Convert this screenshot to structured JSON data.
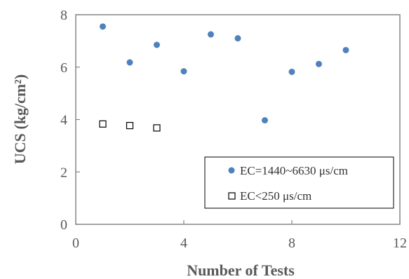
{
  "chart_data": {
    "type": "scatter",
    "xlabel": "Number of Tests",
    "ylabel": "UCS (kg/cm²)",
    "xlim": [
      0,
      12
    ],
    "ylim": [
      0,
      8
    ],
    "xticks": [
      0,
      4,
      8,
      12
    ],
    "yticks": [
      0,
      2,
      4,
      6,
      8
    ],
    "grid": false,
    "legend_position": "bottom-right",
    "series": [
      {
        "name": "EC=1440~6630 μs/cm",
        "marker": "filled-circle",
        "color": "#4f81bd",
        "points": [
          {
            "x": 1,
            "y": 7.55
          },
          {
            "x": 2,
            "y": 6.18
          },
          {
            "x": 3,
            "y": 6.85
          },
          {
            "x": 4,
            "y": 5.84
          },
          {
            "x": 5,
            "y": 7.25
          },
          {
            "x": 6,
            "y": 7.1
          },
          {
            "x": 7,
            "y": 3.97
          },
          {
            "x": 8,
            "y": 5.82
          },
          {
            "x": 9,
            "y": 6.12
          },
          {
            "x": 10,
            "y": 6.65
          }
        ]
      },
      {
        "name": "EC<250 μs/cm",
        "marker": "open-square",
        "color": "#000000",
        "points": [
          {
            "x": 1,
            "y": 3.83
          },
          {
            "x": 2,
            "y": 3.77
          },
          {
            "x": 3,
            "y": 3.68
          }
        ]
      }
    ]
  }
}
